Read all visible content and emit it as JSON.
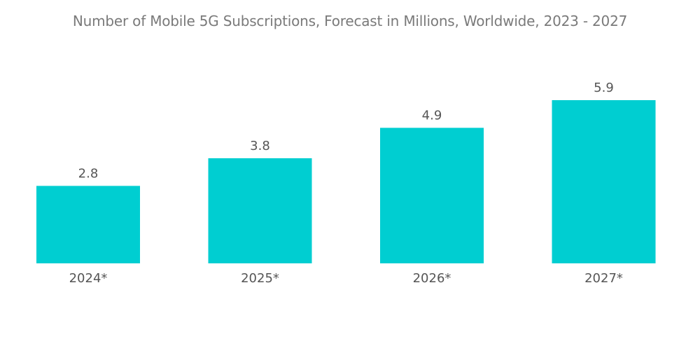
{
  "chart_data": {
    "type": "bar",
    "title": "Number of Mobile 5G Subscriptions, Forecast in Millions, Worldwide, 2023 - 2027",
    "categories": [
      "2024*",
      "2025*",
      "2026*",
      "2027*"
    ],
    "values": [
      2.8,
      3.8,
      4.9,
      5.9
    ],
    "value_labels": [
      "2.8",
      "3.8",
      "4.9",
      "5.9"
    ],
    "xlabel": "",
    "ylabel": "",
    "ylim": [
      0,
      5.9
    ],
    "grid": false,
    "legend": "none",
    "bar_color": "#00CED1"
  }
}
